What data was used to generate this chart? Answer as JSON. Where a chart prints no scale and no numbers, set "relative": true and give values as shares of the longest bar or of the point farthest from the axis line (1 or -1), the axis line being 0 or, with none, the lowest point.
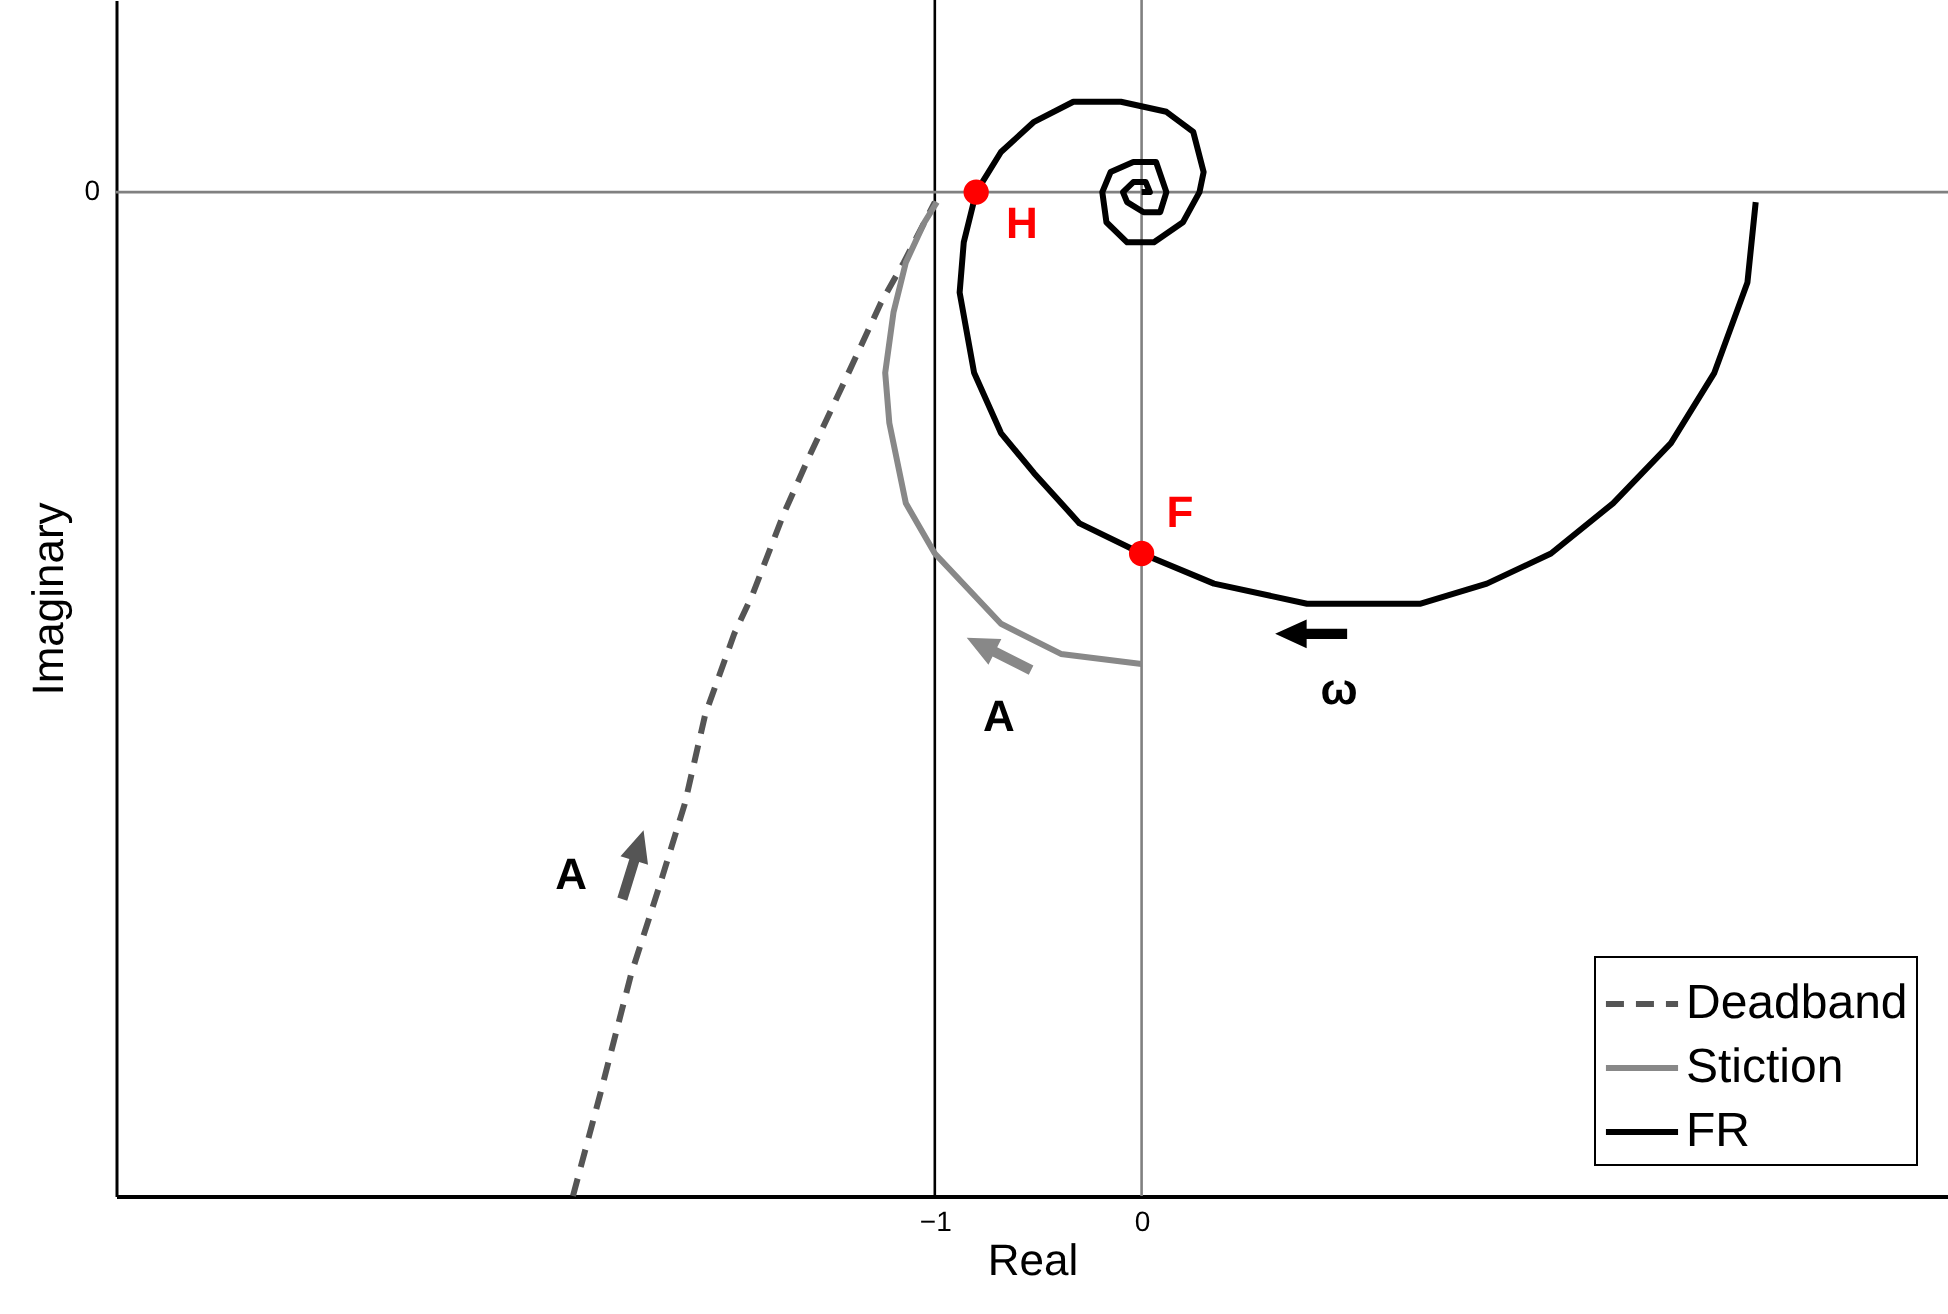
{
  "chart_data": {
    "type": "line",
    "xlabel": "Real",
    "ylabel": "Imaginary",
    "relative": true,
    "xlim": [
      -4.96,
      3.9
    ],
    "xticks": [
      {
        "value": -1,
        "label": "−1"
      },
      0
    ],
    "legend": "bottom right",
    "ref_lines": [
      {
        "axis": "x",
        "value": -1,
        "color": "#000000"
      },
      {
        "axis": "x",
        "value": 0,
        "color": "#808080"
      },
      {
        "axis": "y",
        "value": 0,
        "label": "0",
        "color": "#808080"
      }
    ],
    "series": [
      {
        "name": "Deadband",
        "color": "#555555",
        "line_style": "dashed",
        "x": [
          -2.75,
          -2.62,
          -2.47,
          -2.33,
          -2.21,
          -2.11,
          -1.97,
          -1.88,
          -1.73,
          -1.6,
          -1.44,
          -1.26,
          -1.15,
          -1.0
        ],
        "values": [
          -1.0,
          -0.9,
          -0.78,
          -0.69,
          -0.61,
          -0.52,
          -0.44,
          -0.4,
          -0.32,
          -0.26,
          -0.19,
          -0.11,
          -0.07,
          -0.01
        ]
      },
      {
        "name": "Stiction",
        "color": "#888888",
        "line_style": "solid",
        "x": [
          0,
          -0.39,
          -0.68,
          -1.0,
          -1.14,
          -1.22,
          -1.24,
          -1.2,
          -1.14,
          -1.05,
          -0.99
        ],
        "values": [
          -0.47,
          -0.46,
          -0.43,
          -0.36,
          -0.31,
          -0.23,
          -0.18,
          -0.12,
          -0.07,
          -0.03,
          -0.01
        ]
      },
      {
        "name": "FR",
        "color": "#000000",
        "line_style": "solid",
        "x": [
          2.97,
          2.93,
          2.77,
          2.56,
          2.28,
          1.98,
          1.67,
          1.35,
          1.03,
          0.8,
          0.35,
          0,
          -0.3,
          -0.52,
          -0.68,
          -0.81,
          -0.88,
          -0.86,
          -0.8,
          -0.68,
          -0.52,
          -0.33,
          -0.1,
          0.12,
          0.25,
          0.3,
          0.28,
          0.2,
          0.06,
          -0.07,
          -0.17,
          -0.19,
          -0.15,
          -0.04,
          0.07,
          0.12,
          0.09,
          0.01,
          -0.07,
          -0.09,
          -0.04,
          0.02,
          0.04,
          0
        ],
        "values": [
          -0.01,
          -0.09,
          -0.18,
          -0.25,
          -0.31,
          -0.36,
          -0.39,
          -0.41,
          -0.41,
          -0.41,
          -0.39,
          -0.36,
          -0.33,
          -0.28,
          -0.24,
          -0.18,
          -0.1,
          -0.05,
          0,
          0.04,
          0.07,
          0.09,
          0.09,
          0.08,
          0.06,
          0.02,
          0,
          -0.03,
          -0.05,
          -0.05,
          -0.03,
          0,
          0.02,
          0.03,
          0.03,
          0,
          -0.02,
          -0.02,
          -0.01,
          0,
          0.01,
          0.01,
          0,
          0
        ]
      },
      {
        "type": "scatter",
        "color": "#ff0000",
        "marker": "circle",
        "x": [
          -0.8,
          0
        ],
        "values": [
          0,
          -0.36
        ]
      }
    ],
    "annotations": [
      {
        "text": "A",
        "x": -2.46,
        "y": -0.67
      },
      {
        "text": "A",
        "x": -0.69,
        "y": -0.46
      },
      {
        "text": "ω",
        "x": 0.82,
        "y": -0.44
      },
      {
        "text": "H",
        "x": -0.8,
        "y": 0
      },
      {
        "text": "F",
        "x": 0,
        "y": -0.36
      }
    ]
  }
}
